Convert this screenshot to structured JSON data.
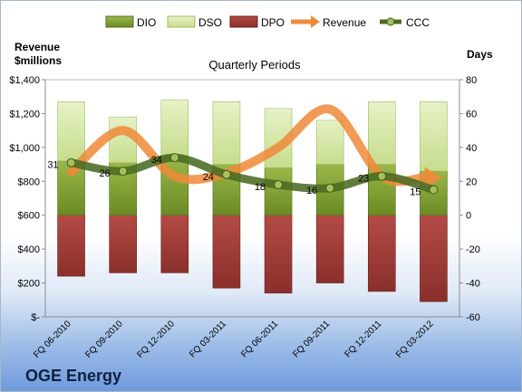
{
  "company": "OGE Energy",
  "chart_data": {
    "type": "bar",
    "title": "Quarterly Periods",
    "y_left_label_line1": "Revenue",
    "y_left_label_line2": "$millions",
    "y_right_label": "Days",
    "categories": [
      "FQ 06-2010",
      "FQ 09-2010",
      "FQ 12-2010",
      "FQ 03-2011",
      "FQ 06-2011",
      "FQ 09-2011",
      "FQ 12-2011",
      "FQ 03-2012"
    ],
    "y_left_ticks": [
      "$-",
      "$200",
      "$400",
      "$600",
      "$800",
      "$1,000",
      "$1,200",
      "$1,400"
    ],
    "y_left_lim": [
      0,
      1400
    ],
    "y_right_ticks": [
      "-60",
      "-40",
      "-20",
      "0",
      "20",
      "40",
      "60",
      "80"
    ],
    "y_right_lim": [
      -60,
      80
    ],
    "legend_position": "top",
    "series": [
      {
        "name": "DIO",
        "axis": "right",
        "kind": "stacked-bar",
        "color": "#7a9a2e",
        "values": [
          32,
          31,
          35,
          30,
          28,
          30,
          30,
          26
        ]
      },
      {
        "name": "DSO",
        "axis": "right",
        "kind": "stacked-bar",
        "color": "#d6e8a6",
        "values": [
          35,
          27,
          33,
          37,
          35,
          26,
          37,
          41
        ]
      },
      {
        "name": "DPO",
        "axis": "right",
        "kind": "negative-bar",
        "color": "#9e3a36",
        "values": [
          -36,
          -34,
          -34,
          -43,
          -46,
          -40,
          -45,
          -51
        ]
      },
      {
        "name": "Revenue",
        "axis": "left",
        "kind": "line",
        "color": "#ee8a3a",
        "values": [
          855,
          1100,
          830,
          850,
          1000,
          1225,
          830,
          820
        ]
      },
      {
        "name": "CCC",
        "axis": "right",
        "kind": "line",
        "color": "#4b6b23",
        "values": [
          31,
          26,
          34,
          24,
          18,
          16,
          23,
          15
        ]
      }
    ],
    "data_labels": [
      "31",
      "26",
      "34",
      "24",
      "18",
      "16",
      "23",
      "15"
    ]
  }
}
